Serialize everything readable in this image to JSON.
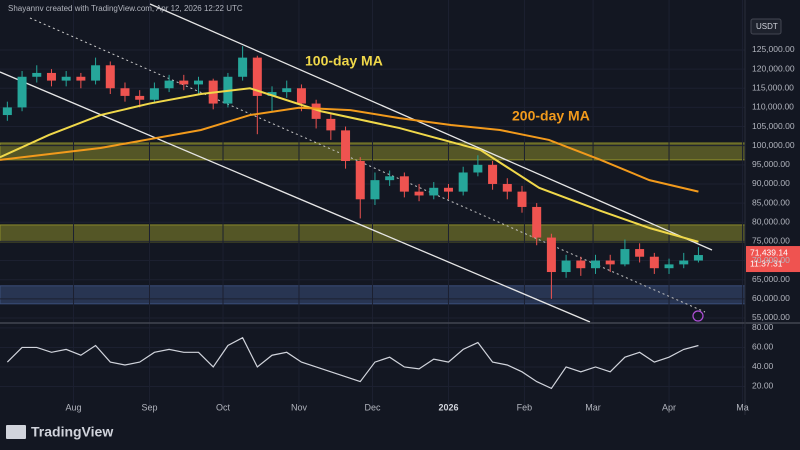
{
  "header": "Shayannv created with TradingView.com, Apr 12, 2026 12:22 UTC",
  "currency": "USDT",
  "logo": "TradingView",
  "countdown": "11:37:31",
  "chart_data": [
    {
      "type": "candlestick",
      "xlim": [
        0,
        304
      ],
      "xticks": [
        {
          "value": 30,
          "label": "Aug"
        },
        {
          "value": 61,
          "label": "Sep"
        },
        {
          "value": 91,
          "label": "Oct"
        },
        {
          "value": 122,
          "label": "Nov"
        },
        {
          "value": 152,
          "label": "Dec"
        },
        {
          "value": 183,
          "label": "2026"
        },
        {
          "value": 214,
          "label": "Feb"
        },
        {
          "value": 242,
          "label": "Mar"
        },
        {
          "value": 273,
          "label": "Apr"
        },
        {
          "value": 303,
          "label": "Ma"
        }
      ],
      "ylim": [
        53950,
        138050
      ],
      "yticks": [
        {
          "value": 125000,
          "label": "125,000.00"
        },
        {
          "value": 120000,
          "label": "120,000.00"
        },
        {
          "value": 115000,
          "label": "115,000.00"
        },
        {
          "value": 110000,
          "label": "110,000.00"
        },
        {
          "value": 105000,
          "label": "105,000.00"
        },
        {
          "value": 100000,
          "label": "100,000.00"
        },
        {
          "value": 95000,
          "label": "95,000.00"
        },
        {
          "value": 90000,
          "label": "90,000.00"
        },
        {
          "value": 85000,
          "label": "85,000.00"
        },
        {
          "value": 80000,
          "label": "80,000.00"
        },
        {
          "value": 75000,
          "label": "75,000.00"
        },
        {
          "value": 70000,
          "label": "70,000.00"
        },
        {
          "value": 65000,
          "label": "65,000.00"
        },
        {
          "value": 60000,
          "label": "60,000.00"
        },
        {
          "value": 55000,
          "label": "55,000.00"
        }
      ],
      "up_color": "#26a69a",
      "down_color": "#ef5350",
      "x": [
        3,
        9,
        15,
        21,
        27,
        33,
        39,
        45,
        51,
        57,
        63,
        69,
        75,
        81,
        87,
        93,
        99,
        105,
        111,
        117,
        123,
        129,
        135,
        141,
        147,
        153,
        159,
        165,
        171,
        177,
        183,
        189,
        195,
        201,
        207,
        213,
        219,
        225,
        231,
        237,
        243,
        249,
        255,
        261,
        267,
        273,
        279,
        285
      ],
      "open": [
        108000,
        110000,
        118000,
        119000,
        117000,
        118000,
        117000,
        121000,
        115000,
        113000,
        112000,
        115000,
        117000,
        116000,
        117000,
        111000,
        118000,
        123000,
        113000,
        114000,
        115000,
        111000,
        107000,
        104000,
        96000,
        86000,
        91000,
        92000,
        88000,
        87000,
        89000,
        88000,
        93000,
        95000,
        90000,
        88000,
        84000,
        76000,
        67000,
        70000,
        68000,
        70000,
        69000,
        73000,
        71000,
        68000,
        69000,
        70000
      ],
      "high": [
        111500,
        119500,
        121000,
        120000,
        119500,
        119000,
        123000,
        122000,
        116500,
        114500,
        116500,
        118500,
        118500,
        118000,
        117500,
        119000,
        126000,
        123500,
        115500,
        117000,
        116000,
        112000,
        108500,
        105000,
        97000,
        93000,
        93500,
        93000,
        90000,
        90500,
        90000,
        94500,
        97500,
        96000,
        91500,
        89500,
        85000,
        77000,
        71500,
        71000,
        71500,
        71500,
        75500,
        74500,
        72000,
        70500,
        72000,
        73500
      ],
      "low": [
        106500,
        109000,
        116500,
        115500,
        115500,
        115000,
        116000,
        113500,
        111500,
        110000,
        111000,
        114000,
        114500,
        113500,
        109500,
        110000,
        117000,
        103000,
        109000,
        112500,
        109000,
        104500,
        101500,
        94000,
        81000,
        84500,
        89500,
        86500,
        85500,
        86000,
        86000,
        87000,
        92000,
        88500,
        86000,
        82500,
        74000,
        60000,
        65500,
        66000,
        66500,
        67000,
        68500,
        69500,
        66500,
        66500,
        68000,
        69500
      ],
      "close": [
        110000,
        118000,
        119000,
        117000,
        118000,
        117000,
        121000,
        115000,
        113000,
        112000,
        115000,
        117000,
        116000,
        117000,
        111000,
        118000,
        123000,
        113000,
        114000,
        115000,
        111000,
        107000,
        104000,
        96000,
        86000,
        91000,
        92000,
        88000,
        87000,
        89000,
        88000,
        93000,
        95000,
        90000,
        88000,
        84000,
        76000,
        67000,
        70000,
        68000,
        70000,
        69000,
        73000,
        71000,
        68000,
        69000,
        70000,
        71439.14
      ],
      "close_labels": {
        "47": "71,439.14"
      },
      "zones": [
        {
          "low": 96300,
          "high": 100700,
          "color": "#8a8a2a"
        },
        {
          "low": 74900,
          "high": 79300,
          "color": "#8a8a2a"
        },
        {
          "low": 58700,
          "high": 63400,
          "color": "#3a4e7a"
        }
      ],
      "series": [
        {
          "name": "100-day MA",
          "color": "#f0d84a",
          "x": [
            0,
            20,
            41,
            61,
            82,
            102,
            131,
            163,
            196,
            220,
            245,
            265,
            285
          ],
          "values": [
            97000,
            102800,
            108000,
            111000,
            113500,
            115000,
            109000,
            104600,
            98900,
            89000,
            83000,
            78500,
            74900
          ]
        },
        {
          "name": "200-day MA",
          "color": "#f29a1c",
          "x": [
            0,
            41,
            82,
            102,
            122,
            143,
            163,
            184,
            204,
            224,
            245,
            265,
            285
          ],
          "values": [
            96300,
            99400,
            104100,
            108000,
            109900,
            109300,
            107200,
            105400,
            104100,
            101500,
            96300,
            91000,
            88000
          ]
        }
      ]
    },
    {
      "type": "line",
      "xlim": [
        0,
        304
      ],
      "ylim": [
        1,
        83
      ],
      "yticks": [
        {
          "value": 80,
          "label": "80.00"
        },
        {
          "value": 60,
          "label": "60.00"
        },
        {
          "value": 40,
          "label": "40.00"
        },
        {
          "value": 20,
          "label": "20.00"
        }
      ],
      "color": "#d1d4dc",
      "x": [
        3,
        9,
        15,
        21,
        27,
        33,
        39,
        45,
        51,
        57,
        63,
        69,
        75,
        81,
        87,
        93,
        99,
        105,
        111,
        117,
        123,
        129,
        135,
        141,
        147,
        153,
        159,
        165,
        171,
        177,
        183,
        189,
        195,
        201,
        207,
        213,
        219,
        225,
        231,
        237,
        243,
        249,
        255,
        261,
        267,
        273,
        279,
        285
      ],
      "values": [
        45,
        60,
        60,
        55,
        58,
        52,
        62,
        45,
        42,
        45,
        55,
        58,
        55,
        55,
        40,
        62,
        70,
        40,
        52,
        55,
        45,
        40,
        35,
        30,
        25,
        45,
        50,
        40,
        38,
        48,
        45,
        58,
        65,
        45,
        42,
        35,
        25,
        18,
        40,
        35,
        40,
        35,
        50,
        55,
        45,
        50,
        58,
        62
      ]
    }
  ]
}
